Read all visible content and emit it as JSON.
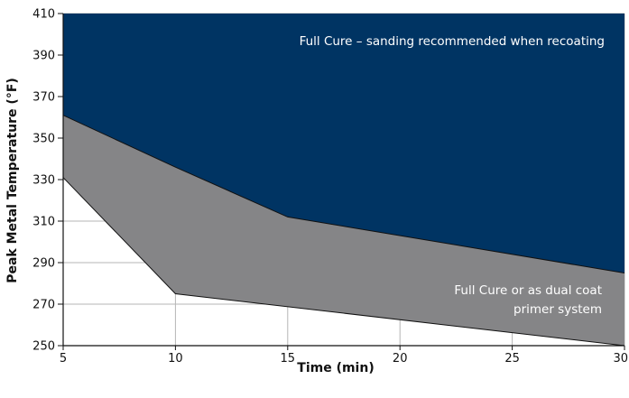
{
  "chart_data": {
    "type": "area",
    "title": "",
    "xlabel": "Time (min)",
    "ylabel": "Peak Metal Temperature (°F)",
    "xlim": [
      5,
      30
    ],
    "ylim": [
      250,
      410
    ],
    "x_ticks": [
      5,
      10,
      15,
      20,
      25,
      30
    ],
    "y_ticks": [
      250,
      270,
      290,
      310,
      330,
      350,
      370,
      390,
      410
    ],
    "grid": true,
    "colors": {
      "full_cure": "#003463",
      "dual_coat": "#858587",
      "grid": "#b5b5b5",
      "boundary": "#111111"
    },
    "regions": [
      {
        "label": "Full Cure – sanding recommended when recoating",
        "upper": [
          [
            5,
            410
          ],
          [
            30,
            410
          ]
        ],
        "lower": [
          [
            5,
            361
          ],
          [
            10,
            336
          ],
          [
            15,
            312
          ],
          [
            30,
            285
          ]
        ]
      },
      {
        "label_lines": [
          "Full Cure or as dual coat",
          "primer system"
        ],
        "upper": [
          [
            5,
            361
          ],
          [
            10,
            336
          ],
          [
            15,
            312
          ],
          [
            30,
            285
          ]
        ],
        "lower": [
          [
            5,
            331
          ],
          [
            10,
            275
          ],
          [
            30,
            250
          ]
        ]
      }
    ]
  }
}
